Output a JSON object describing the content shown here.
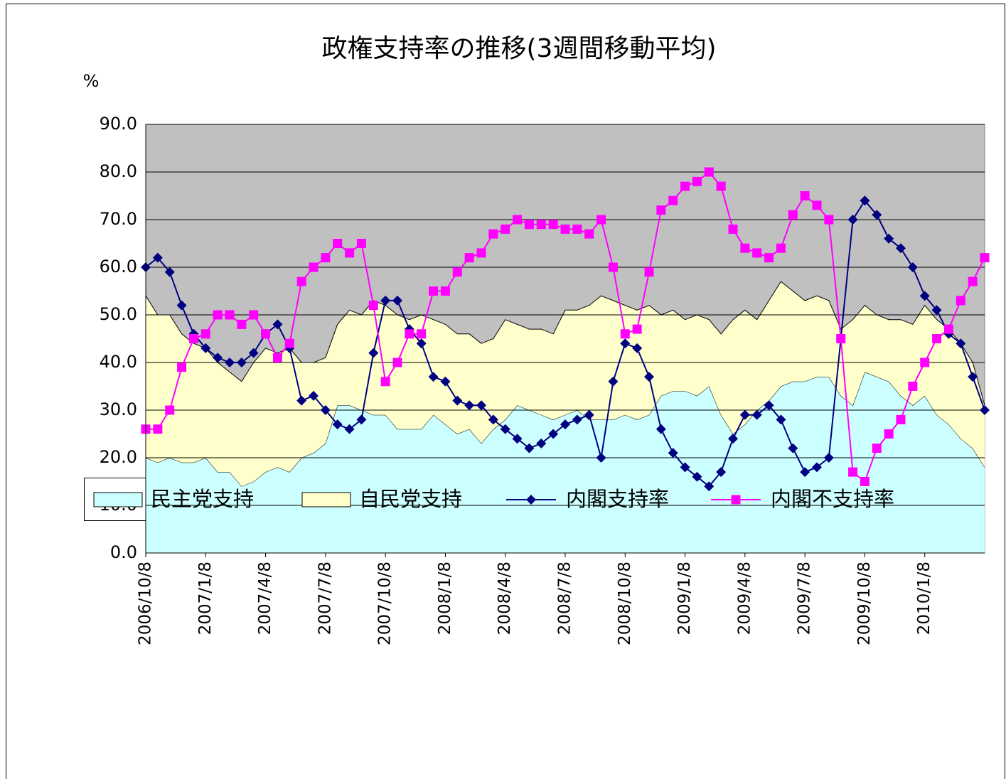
{
  "chart_data": {
    "type": "area",
    "title": "政権支持率の推移(3週間移動平均)",
    "y_label": "%",
    "categories": [
      "2006/10/8",
      null,
      null,
      null,
      null,
      "2007/1/8",
      null,
      null,
      null,
      null,
      "2007/4/8",
      null,
      null,
      null,
      null,
      "2007/7/8",
      null,
      null,
      null,
      null,
      "2007/10/8",
      null,
      null,
      null,
      null,
      "2008/1/8",
      null,
      null,
      null,
      null,
      "2008/4/8",
      null,
      null,
      null,
      null,
      "2008/7/8",
      null,
      null,
      null,
      null,
      "2008/10/8",
      null,
      null,
      null,
      null,
      "2009/1/8",
      null,
      null,
      null,
      null,
      "2009/4/8",
      null,
      null,
      null,
      null,
      "2009/7/8",
      null,
      null,
      null,
      null,
      "2009/10/8",
      null,
      null,
      null,
      null,
      "2010/1/8",
      null,
      null,
      null,
      null,
      null
    ],
    "series": [
      {
        "name": "民主党支持",
        "type": "area",
        "color": "#ccffff",
        "values": [
          20,
          19,
          20,
          19,
          19,
          20,
          17,
          17,
          14,
          15,
          17,
          18,
          17,
          20,
          21,
          23,
          31,
          31,
          30,
          29,
          29,
          26,
          26,
          26,
          29,
          27,
          25,
          26,
          23,
          26,
          28,
          31,
          30,
          29,
          28,
          29,
          30,
          28,
          28,
          28,
          29,
          28,
          29,
          33,
          34,
          34,
          33,
          35,
          29,
          25,
          27,
          30,
          32,
          35,
          36,
          36,
          37,
          37,
          33,
          31,
          38,
          37,
          36,
          33,
          31,
          33,
          29,
          27,
          24,
          22,
          18
        ]
      },
      {
        "name": "自民党支持",
        "type": "area",
        "color": "#ffffcc",
        "values": [
          34,
          31,
          30,
          27,
          25,
          23,
          23,
          21,
          22,
          25,
          26,
          24,
          26,
          20,
          19,
          18,
          17,
          20,
          20,
          24,
          23,
          24,
          23,
          24,
          20,
          21,
          21,
          20,
          21,
          19,
          21,
          17,
          17,
          18,
          18,
          22,
          21,
          24,
          26,
          25,
          23,
          23,
          23,
          17,
          17,
          15,
          17,
          14,
          17,
          24,
          24,
          19,
          21,
          22,
          19,
          17,
          17,
          16,
          14,
          18,
          14,
          13,
          13,
          16,
          17,
          19,
          20,
          20,
          20,
          18,
          13
        ]
      },
      {
        "name": "内閣支持率",
        "type": "line",
        "marker": "diamond",
        "color": "#000080",
        "values": [
          60,
          62,
          59,
          52,
          46,
          43,
          41,
          40,
          40,
          42,
          46,
          48,
          43,
          32,
          33,
          30,
          27,
          26,
          28,
          42,
          53,
          53,
          47,
          44,
          37,
          36,
          32,
          31,
          31,
          28,
          26,
          24,
          22,
          23,
          25,
          27,
          28,
          29,
          20,
          36,
          44,
          43,
          37,
          26,
          21,
          18,
          16,
          14,
          17,
          24,
          29,
          29,
          31,
          28,
          22,
          17,
          18,
          20,
          45,
          70,
          74,
          71,
          66,
          64,
          60,
          54,
          51,
          46,
          44,
          37,
          30
        ]
      },
      {
        "name": "内閣不支持率",
        "type": "line",
        "marker": "square",
        "color": "#ff00ff",
        "values": [
          26,
          26,
          30,
          39,
          45,
          46,
          50,
          50,
          48,
          50,
          46,
          41,
          44,
          57,
          60,
          62,
          65,
          63,
          65,
          52,
          36,
          40,
          46,
          46,
          55,
          55,
          59,
          62,
          63,
          67,
          68,
          70,
          69,
          69,
          69,
          68,
          68,
          67,
          70,
          60,
          46,
          47,
          59,
          72,
          74,
          77,
          78,
          80,
          77,
          68,
          64,
          63,
          62,
          64,
          71,
          75,
          73,
          70,
          45,
          17,
          15,
          22,
          25,
          28,
          35,
          40,
          45,
          47,
          53,
          57,
          62
        ]
      }
    ],
    "ylim": [
      0,
      90
    ],
    "yticks": [
      {
        "value": 0,
        "label": "0.0"
      },
      {
        "value": 10,
        "label": "10.0"
      },
      {
        "value": 20,
        "label": "20.0"
      },
      {
        "value": 30,
        "label": "30.0"
      },
      {
        "value": 40,
        "label": "40.0"
      },
      {
        "value": 50,
        "label": "50.0"
      },
      {
        "value": 60,
        "label": "60.0"
      },
      {
        "value": 70,
        "label": "70.0"
      },
      {
        "value": 80,
        "label": "80.0"
      },
      {
        "value": 90,
        "label": "90.0"
      }
    ],
    "grid": true,
    "plot_background": "#c0c0c0",
    "legend": "bottom"
  }
}
